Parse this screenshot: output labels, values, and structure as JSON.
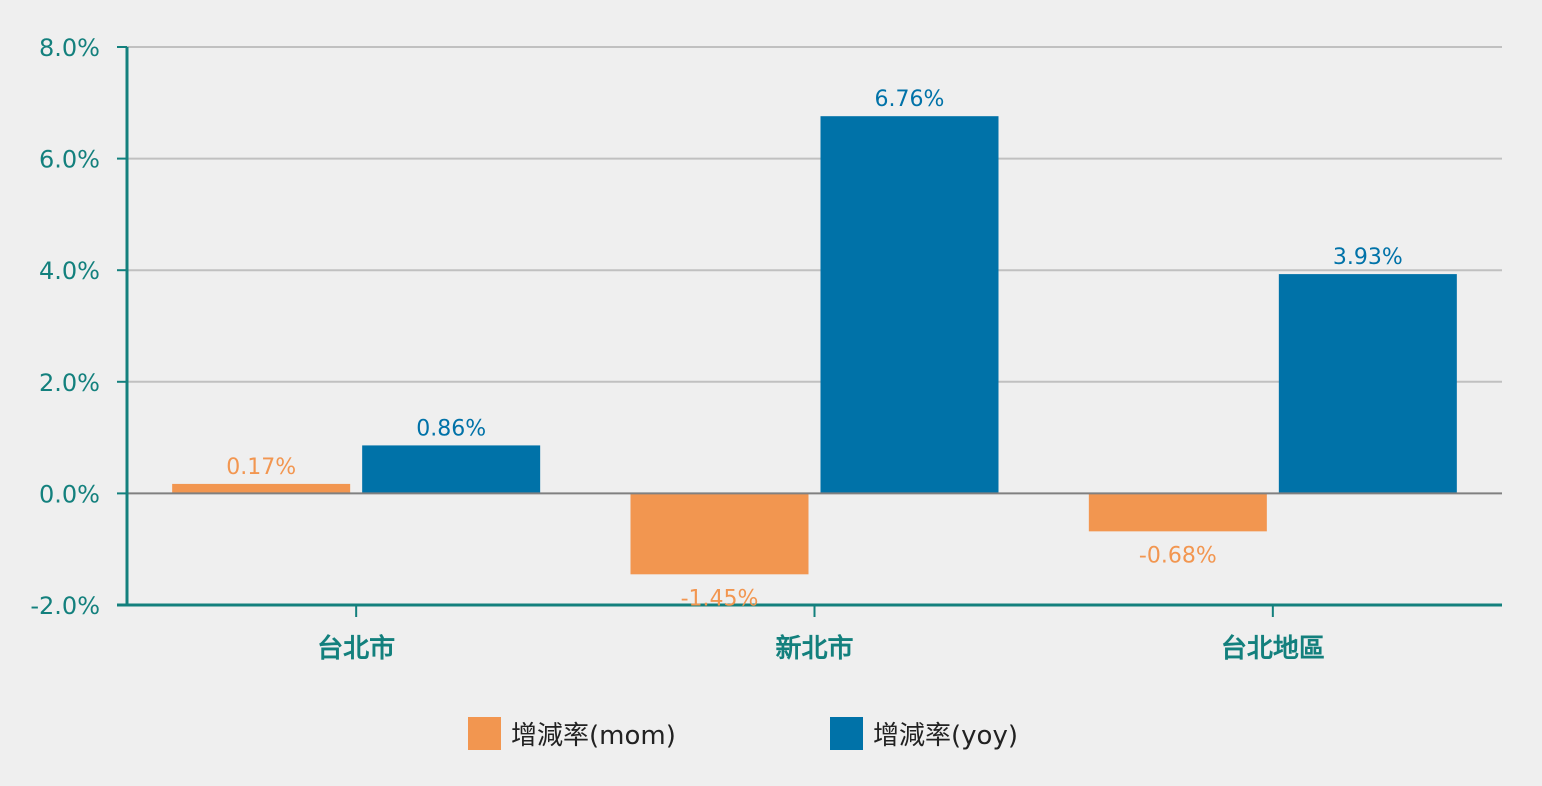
{
  "chart_data": {
    "type": "bar",
    "categories": [
      "台北市",
      "新北市",
      "台北地區"
    ],
    "series": [
      {
        "name": "增減率(mom)",
        "values": [
          0.17,
          -1.45,
          -0.68
        ],
        "labels": [
          "0.17%",
          "-1.45%",
          "-0.68%"
        ]
      },
      {
        "name": "增減率(yoy)",
        "values": [
          0.86,
          6.76,
          3.93
        ],
        "labels": [
          "0.86%",
          "6.76%",
          "3.93%"
        ]
      }
    ],
    "ylim": [
      -2,
      8
    ],
    "yticks": [
      -2,
      0,
      2,
      4,
      6,
      8
    ],
    "ytick_labels": [
      "-2.0%",
      "0.0%",
      "2.0%",
      "4.0%",
      "6.0%",
      "8.0%"
    ],
    "grid": true,
    "legend_position": "bottom"
  },
  "colors": {
    "mom": "#f29650",
    "yoy": "#0072a8",
    "axis": "#13807d",
    "grid": "#c0c0c0",
    "zero_line": "#808080"
  }
}
